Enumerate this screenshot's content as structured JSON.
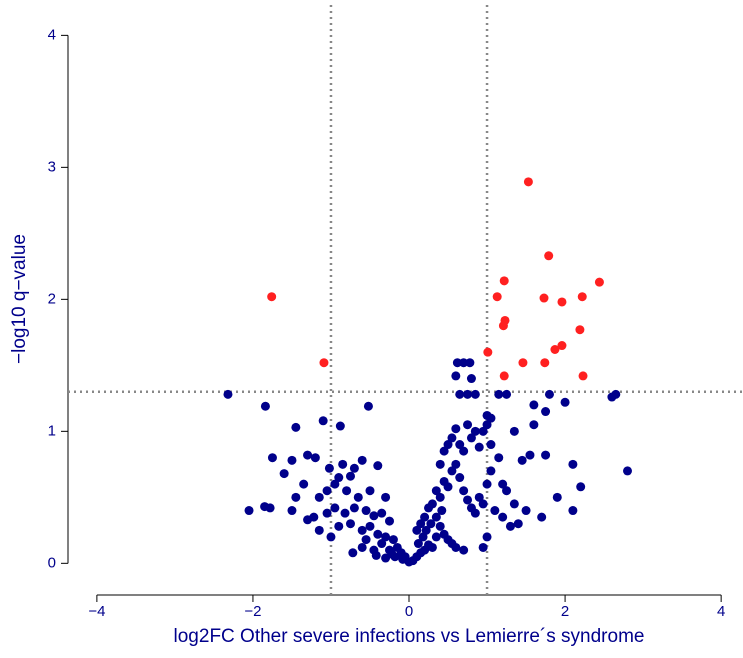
{
  "chart_data": {
    "type": "scatter",
    "xlabel": "log2FC Other severe infections vs Lemierre´s syndrome",
    "ylabel": "−log10 q−value",
    "xlim": [
      -4.37,
      4.28
    ],
    "ylim": [
      -0.24,
      4.23
    ],
    "xticks": [
      {
        "value": -4,
        "label": "−4"
      },
      {
        "value": -2,
        "label": "−2"
      },
      0,
      2,
      4
    ],
    "yticks": [
      0,
      1,
      2,
      3,
      4
    ],
    "vlines": [
      -1,
      1
    ],
    "hline": 1.3,
    "line_color": "#888888",
    "series": [
      {
        "color": "#00008b",
        "x": [
          -2.32,
          -1.84,
          -1.45,
          -1.1,
          -0.88,
          -0.52,
          -1.75,
          -1.5,
          -1.2,
          -1.3,
          -1.6,
          -1.02,
          -0.85,
          -0.7,
          -0.6,
          -0.4,
          -0.75,
          -0.9,
          -1.35,
          -1.45,
          -1.15,
          -1.05,
          -0.95,
          -0.8,
          -0.65,
          -0.5,
          -0.3,
          -2.05,
          -1.85,
          -1.78,
          -1.5,
          -1.3,
          -1.22,
          -1.05,
          -0.95,
          -0.82,
          -0.7,
          -0.55,
          -0.45,
          -0.35,
          -0.25,
          -0.9,
          -0.75,
          -0.6,
          -0.5,
          -0.4,
          -0.3,
          -0.2,
          -0.15,
          -0.1,
          -0.05,
          -0.72,
          -0.6,
          -0.45,
          -0.35,
          -0.25,
          -0.18,
          -0.08,
          0,
          -1.15,
          -1.0,
          -0.55,
          -0.42,
          -0.3,
          -0.22,
          0.05,
          0.1,
          0.15,
          0.2,
          0.25,
          0.3,
          0.12,
          0.18,
          0.22,
          0.28,
          0.35,
          0.4,
          0.45,
          0.5,
          0.55,
          0.6,
          0.7,
          0.95,
          1.0,
          0.3,
          0.35,
          0.4,
          0.45,
          0.5,
          0.55,
          0.6,
          0.65,
          0.7,
          0.75,
          0.8,
          0.85,
          0.9,
          0.95,
          1.0,
          1.05,
          0.4,
          0.45,
          0.5,
          0.55,
          0.6,
          0.65,
          0.7,
          0.75,
          0.8,
          0.85,
          0.9,
          0.95,
          1.0,
          1.05,
          1.0,
          0.65,
          0.75,
          0.85,
          0.6,
          0.7,
          0.78,
          0.62,
          0.8,
          1.15,
          1.25,
          1.15,
          1.25,
          1.35,
          1.5,
          1.7,
          1.9,
          2.1,
          1.4,
          1.3,
          1.2,
          1.1,
          1.45,
          1.55,
          1.6,
          1.75,
          1.8,
          1.75,
          1.6,
          2.0,
          2.1,
          2.2,
          2.6,
          2.65,
          2.8,
          1.35,
          1.2,
          1.05,
          0.2,
          0.25,
          0.1,
          0.15,
          0.35,
          0.42
        ],
        "values": [
          1.28,
          1.19,
          1.03,
          1.08,
          1.04,
          1.19,
          0.8,
          0.78,
          0.8,
          0.82,
          0.68,
          0.72,
          0.75,
          0.72,
          0.78,
          0.74,
          0.66,
          0.65,
          0.6,
          0.5,
          0.5,
          0.55,
          0.6,
          0.55,
          0.5,
          0.55,
          0.5,
          0.4,
          0.43,
          0.42,
          0.4,
          0.33,
          0.35,
          0.38,
          0.42,
          0.38,
          0.42,
          0.4,
          0.36,
          0.38,
          0.32,
          0.28,
          0.3,
          0.25,
          0.28,
          0.22,
          0.2,
          0.18,
          0.12,
          0.08,
          0.05,
          0.08,
          0.12,
          0.1,
          0.15,
          0.1,
          0.05,
          0.03,
          0.01,
          0.25,
          0.2,
          0.18,
          0.06,
          0.04,
          0.07,
          0.02,
          0.05,
          0.08,
          0.1,
          0.14,
          0.12,
          0.15,
          0.2,
          0.25,
          0.3,
          0.35,
          0.28,
          0.22,
          0.18,
          0.15,
          0.12,
          0.1,
          0.12,
          0.2,
          0.45,
          0.55,
          0.5,
          0.62,
          0.58,
          0.7,
          0.75,
          0.65,
          0.55,
          0.48,
          0.42,
          0.38,
          0.5,
          0.45,
          0.6,
          0.7,
          0.75,
          0.85,
          0.9,
          0.95,
          1.02,
          0.9,
          0.85,
          1.05,
          0.95,
          1.0,
          0.88,
          1.0,
          1.05,
          1.1,
          1.12,
          1.28,
          1.28,
          1.28,
          1.42,
          1.52,
          1.52,
          1.52,
          1.4,
          1.28,
          1.28,
          0.8,
          0.55,
          0.45,
          0.4,
          0.35,
          0.5,
          0.4,
          0.3,
          0.28,
          0.35,
          0.4,
          0.78,
          0.82,
          1.05,
          0.82,
          1.28,
          1.15,
          1.2,
          1.22,
          0.75,
          0.58,
          1.26,
          1.28,
          0.7,
          1.0,
          0.6,
          0.9,
          0.35,
          0.42,
          0.25,
          0.3,
          0.2,
          0.4
        ]
      },
      {
        "color": "#ff2020",
        "x": [
          -1.76,
          -1.09,
          1.53,
          1.79,
          2.44,
          1.22,
          1.13,
          1.73,
          1.96,
          2.22,
          1.23,
          1.21,
          2.19,
          1.96,
          1.87,
          1.01,
          1.46,
          1.74,
          2.23,
          1.22
        ],
        "values": [
          2.02,
          1.52,
          2.89,
          2.33,
          2.13,
          2.14,
          2.02,
          2.01,
          1.98,
          2.02,
          1.84,
          1.8,
          1.77,
          1.65,
          1.62,
          1.6,
          1.52,
          1.52,
          1.42,
          1.42
        ]
      }
    ]
  }
}
